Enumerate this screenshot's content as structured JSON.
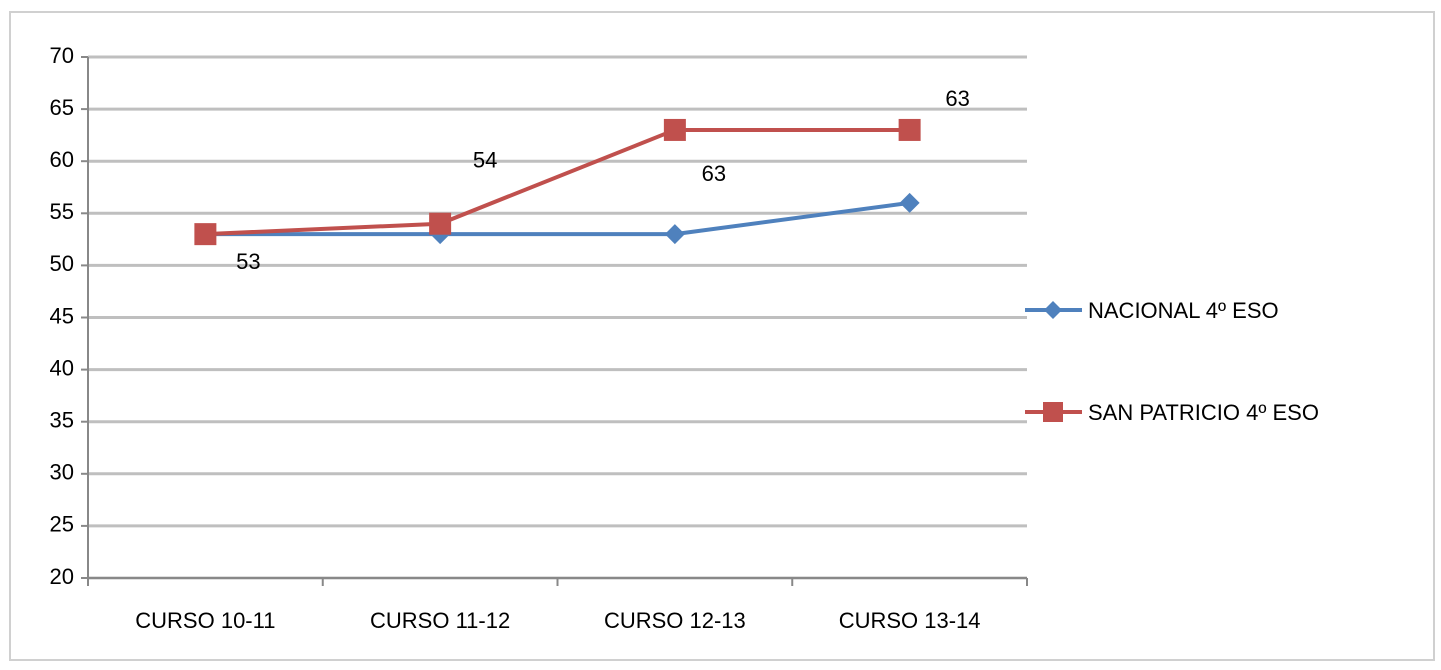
{
  "chart_data": {
    "type": "line",
    "categories": [
      "CURSO 10-11",
      "CURSO 11-12",
      "CURSO 12-13",
      "CURSO 13-14"
    ],
    "series": [
      {
        "name": "NACIONAL 4º ESO",
        "color": "#4f81bd",
        "marker": "diamond",
        "values": [
          53,
          53,
          53,
          56
        ]
      },
      {
        "name": "SAN PATRICIO 4º ESO",
        "color": "#c0504d",
        "marker": "square",
        "values": [
          53,
          54,
          63,
          63
        ],
        "data_labels": true
      }
    ],
    "ylim": [
      20,
      70
    ],
    "yticks": [
      20,
      25,
      30,
      35,
      40,
      45,
      50,
      55,
      60,
      65,
      70
    ],
    "grid": true,
    "legend": "right"
  }
}
